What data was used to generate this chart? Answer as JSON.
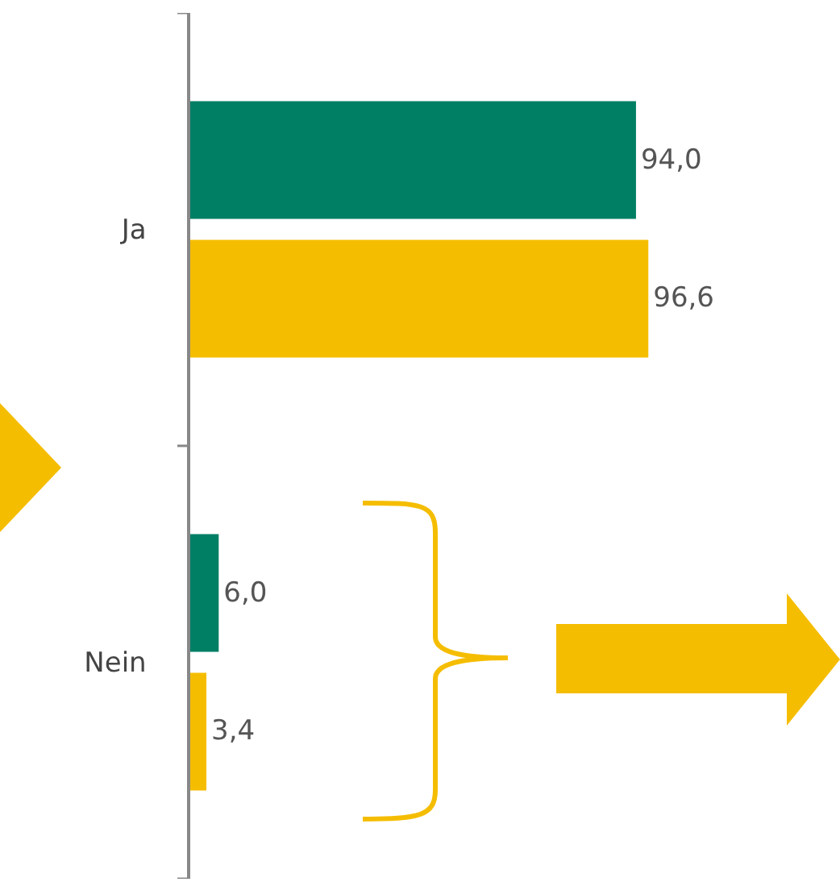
{
  "chart_data": {
    "type": "bar",
    "orientation": "horizontal",
    "categories": [
      "Ja",
      "Nein"
    ],
    "series": [
      {
        "color": "#007f65",
        "values": [
          94.0,
          6.0
        ],
        "value_labels": [
          "94,0",
          "6,0"
        ]
      },
      {
        "color": "#f5bd00",
        "values": [
          96.6,
          3.4
        ],
        "value_labels": [
          "96,6",
          "3,4"
        ]
      }
    ],
    "xlim": [
      0,
      136
    ],
    "tick_labels": "y"
  }
}
